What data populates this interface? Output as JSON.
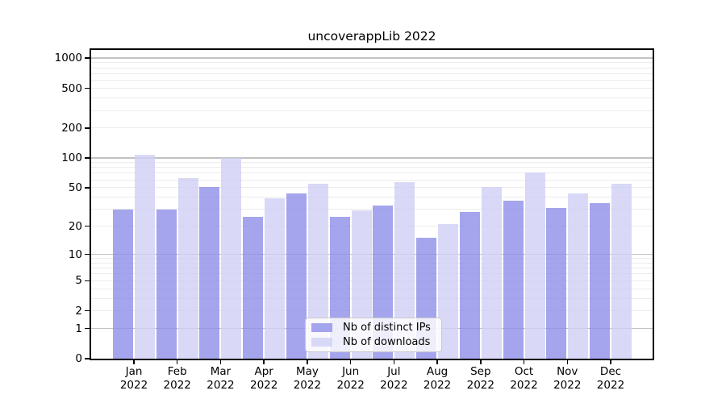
{
  "chart_data": {
    "type": "bar",
    "title": "uncoverappLib 2022",
    "categories": [
      "Jan",
      "Feb",
      "Mar",
      "Apr",
      "May",
      "Jun",
      "Jul",
      "Aug",
      "Sep",
      "Oct",
      "Nov",
      "Dec"
    ],
    "x_year": "2022",
    "series": [
      {
        "name": "Nb of distinct IPs",
        "slug": "distinct-ips",
        "color": "rgba(143,143,233,0.8)",
        "values": [
          30,
          30,
          51,
          25,
          44,
          25,
          33,
          15,
          28,
          37,
          31,
          35
        ]
      },
      {
        "name": "Nb of downloads",
        "slug": "downloads",
        "color": "rgba(208,208,245,0.8)",
        "values": [
          107,
          62,
          100,
          39,
          55,
          29,
          57,
          21,
          51,
          71,
          44,
          55
        ]
      }
    ],
    "y_scale": "log10(value+1)",
    "y_ticks": [
      0,
      1,
      2,
      5,
      10,
      20,
      50,
      100,
      200,
      500,
      1000
    ],
    "y_tick_labels": [
      "0",
      "1",
      "2",
      "5",
      "10",
      "20",
      "50",
      "100",
      "200",
      "500",
      "1000"
    ],
    "y_major_grid_values": [
      1,
      10,
      100,
      1000
    ],
    "ylim": [
      0,
      1240
    ],
    "xlabel": "",
    "ylabel": "",
    "grid": "horizontal major + faint minor",
    "legend_position": "lower center inside plot",
    "colors": {
      "major_grid": "#c2c2c2",
      "minor_grid": "#ececec",
      "spine": "#000000",
      "background": "#ffffff",
      "text": "#000000"
    }
  }
}
